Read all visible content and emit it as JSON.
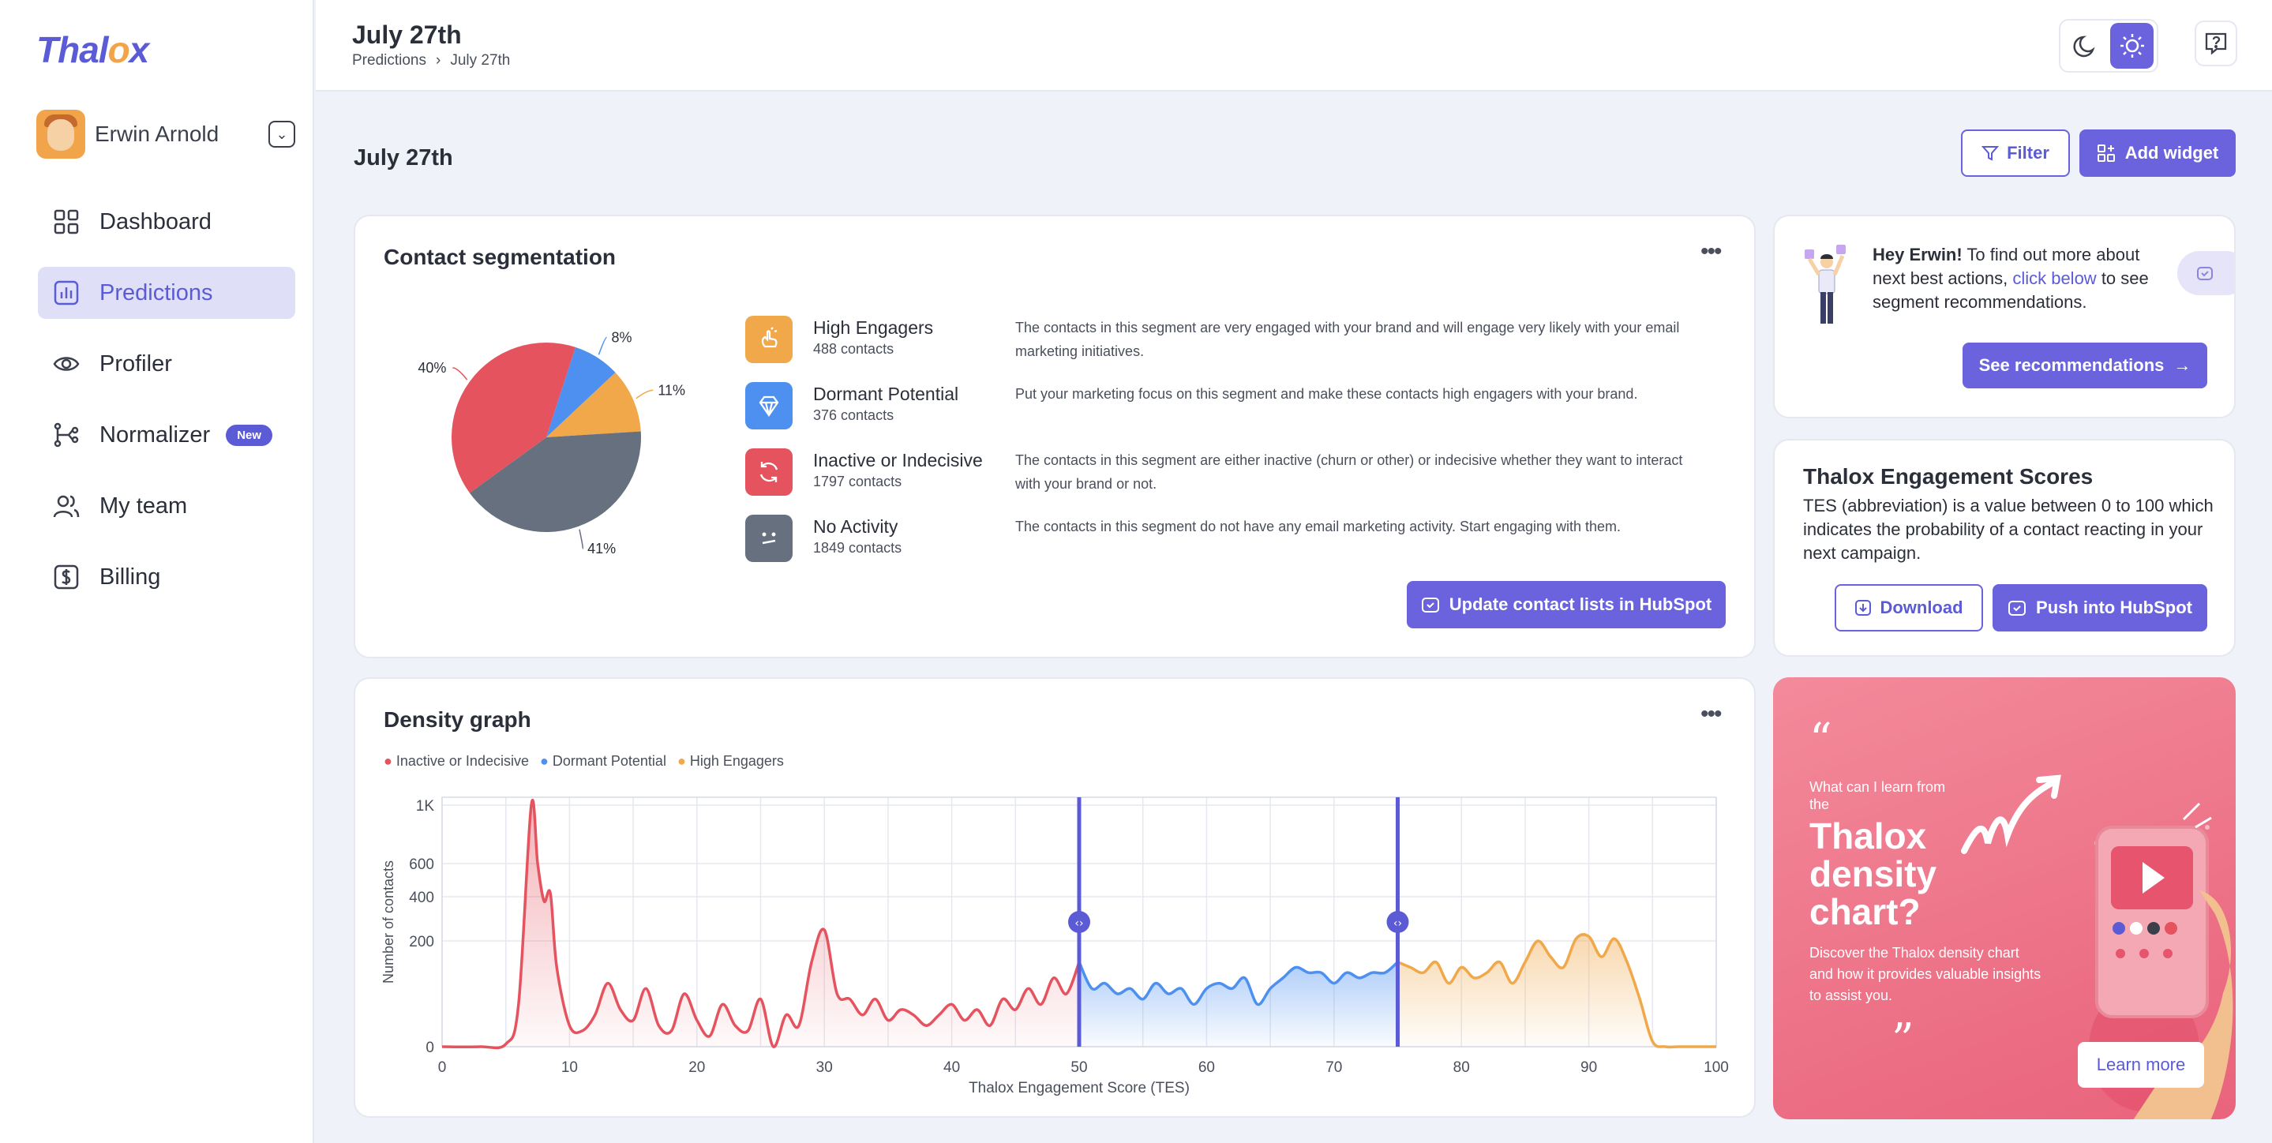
{
  "app": {
    "logo_a": "Thal",
    "logo_o": "o",
    "logo_b": "x"
  },
  "user": {
    "name": "Erwin Arnold"
  },
  "nav": [
    {
      "label": "Dashboard",
      "icon": "grid-icon"
    },
    {
      "label": "Predictions",
      "icon": "chart-icon",
      "active": true
    },
    {
      "label": "Profiler",
      "icon": "eye-icon"
    },
    {
      "label": "Normalizer",
      "icon": "branch-icon",
      "badge": "New"
    },
    {
      "label": "My team",
      "icon": "users-icon"
    },
    {
      "label": "Billing",
      "icon": "dollar-icon"
    }
  ],
  "header": {
    "title": "July 27th",
    "crumb_parent": "Predictions",
    "crumb_current": "July 27th"
  },
  "page": {
    "title": "July 27th",
    "filter": "Filter",
    "add_widget": "Add widget"
  },
  "segmentation": {
    "title": "Contact segmentation",
    "button": "Update contact lists in HubSpot",
    "segments": [
      {
        "name": "High Engagers",
        "count": "488 contacts",
        "desc": "The contacts in this segment are very engaged with your brand and will engage very likely with your email marketing initiatives.",
        "color": "#f0a84a"
      },
      {
        "name": "Dormant Potential",
        "count": "376 contacts",
        "desc": "Put your marketing focus on this segment and make these contacts high engagers with your brand.",
        "color": "#4d90f0"
      },
      {
        "name": "Inactive or Indecisive",
        "count": "1797 contacts",
        "desc": "The contacts in this segment are either inactive (churn or other) or indecisive whether they want to interact with your brand or not.",
        "color": "#e5535f"
      },
      {
        "name": "No Activity",
        "count": "1849 contacts",
        "desc": "The contacts in this segment do not have any email marketing activity. Start engaging with them.",
        "color": "#66707f"
      }
    ]
  },
  "chart_data": [
    {
      "type": "pie",
      "labels": [
        "High Engagers",
        "Dormant Potential",
        "Inactive or Indecisive",
        "No Activity"
      ],
      "values": [
        11,
        8,
        40,
        41
      ],
      "value_labels": [
        "11%",
        "8%",
        "40%",
        "41%"
      ],
      "colors": [
        "#f0a84a",
        "#4d90f0",
        "#e5535f",
        "#66707f"
      ]
    },
    {
      "type": "area",
      "title": "Density graph",
      "xlabel": "Thalox Engagement Score (TES)",
      "ylabel": "Number of contacts",
      "xlim": [
        0,
        100
      ],
      "x_ticks": [
        0,
        10,
        20,
        30,
        40,
        50,
        60,
        70,
        80,
        90,
        100
      ],
      "y_ticks": [
        "0",
        "200",
        "400",
        "600",
        "1K"
      ],
      "thresholds": [
        50,
        75
      ],
      "series": [
        {
          "name": "Inactive or Indecisive",
          "color": "#e5535f",
          "x": [
            0,
            3,
            5,
            6,
            7,
            7.5,
            8,
            8.5,
            9,
            10,
            11,
            12,
            13,
            14,
            15,
            16,
            17,
            18,
            19,
            20,
            21,
            22,
            23,
            24,
            25,
            26,
            27,
            28,
            29,
            30,
            31,
            32,
            33,
            34,
            35,
            36,
            37,
            38,
            39,
            40,
            41,
            42,
            43,
            44,
            45,
            46,
            47,
            48,
            49,
            50
          ],
          "y": [
            0,
            0,
            5,
            80,
            1000,
            600,
            380,
            420,
            150,
            40,
            30,
            60,
            120,
            70,
            50,
            110,
            40,
            30,
            100,
            50,
            20,
            80,
            40,
            30,
            90,
            0,
            60,
            40,
            160,
            250,
            100,
            90,
            60,
            90,
            50,
            70,
            60,
            40,
            60,
            80,
            50,
            70,
            40,
            90,
            70,
            110,
            80,
            130,
            100,
            160
          ]
        },
        {
          "name": "Dormant Potential",
          "color": "#4d90f0",
          "x": [
            50,
            51,
            52,
            53,
            54,
            55,
            56,
            57,
            58,
            59,
            60,
            61,
            62,
            63,
            64,
            65,
            66,
            67,
            68,
            69,
            70,
            71,
            72,
            73,
            74,
            75
          ],
          "y": [
            160,
            110,
            120,
            100,
            110,
            90,
            120,
            100,
            110,
            80,
            110,
            120,
            110,
            130,
            80,
            110,
            130,
            150,
            140,
            140,
            120,
            140,
            130,
            140,
            140,
            160
          ]
        },
        {
          "name": "High Engagers",
          "color": "#f0a84a",
          "x": [
            75,
            76,
            77,
            78,
            79,
            80,
            81,
            82,
            83,
            84,
            85,
            86,
            87,
            88,
            89,
            90,
            91,
            92,
            93,
            94,
            95,
            96,
            97,
            98,
            99,
            100
          ],
          "y": [
            160,
            150,
            140,
            160,
            120,
            150,
            130,
            140,
            160,
            120,
            160,
            200,
            170,
            150,
            210,
            220,
            170,
            210,
            160,
            90,
            10,
            0,
            0,
            0,
            0,
            0
          ]
        }
      ]
    }
  ],
  "density": {
    "title": "Density graph",
    "legend": [
      "Inactive or Indecisive",
      "Dormant Potential",
      "High Engagers"
    ],
    "xlabel": "Thalox Engagement Score (TES)",
    "ylabel": "Number of contacts"
  },
  "welcome": {
    "greeting": "Hey Erwin!",
    "text_a": " To find out more about next best actions, ",
    "link": "click below",
    "text_b": " to see segment recommendations.",
    "button": "See recommendations"
  },
  "tes": {
    "title": "Thalox Engagement Scores",
    "desc": "TES (abbreviation) is a value between 0 to 100 which indicates the probability of a contact reacting in your next campaign.",
    "download": "Download",
    "push": "Push into HubSpot"
  },
  "promo": {
    "small": "What can I learn from the",
    "big1": "Thalox",
    "big2": "density",
    "big3": "chart?",
    "body": "Discover the Thalox density chart and how it provides valuable insights to assist you.",
    "button": "Learn more"
  }
}
